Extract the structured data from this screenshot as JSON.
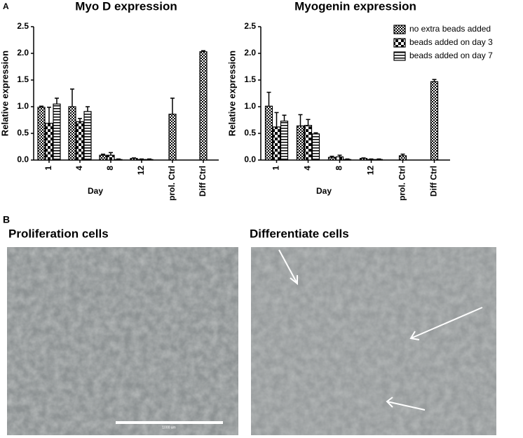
{
  "panel_labels": [
    "A",
    "B"
  ],
  "chart_data": [
    {
      "type": "bar",
      "title": "Myo D expression",
      "y_label": "Relative expression",
      "x_label": "Day",
      "categories": [
        "1",
        "4",
        "8",
        "12",
        "prol. Ctrl",
        "Diff Ctrl"
      ],
      "series": [
        {
          "name": "no extra beads added",
          "color": "#000000",
          "pattern": "checker",
          "values": [
            0.99,
            1.0,
            0.09,
            0.03,
            0.86,
            2.03
          ],
          "errors": [
            0.02,
            0.33,
            0.02,
            0.01,
            0.3,
            0.02
          ]
        },
        {
          "name": "beads added on day 3",
          "color": "#000000",
          "pattern": "dots",
          "values": [
            0.69,
            0.72,
            0.09,
            0.01,
            null,
            null
          ],
          "errors": [
            0.3,
            0.06,
            0.05,
            0.01,
            null,
            null
          ]
        },
        {
          "name": "beads added on day 7",
          "color": "#000000",
          "pattern": "stripes",
          "values": [
            1.05,
            0.91,
            0.01,
            0.01,
            null,
            null
          ],
          "errors": [
            0.11,
            0.09,
            0.01,
            0.01,
            null,
            null
          ]
        }
      ],
      "ylim": [
        0,
        2.5
      ],
      "yticks": [
        {
          "value": 0,
          "label": "0.0"
        },
        {
          "value": 0.5,
          "label": "0.5"
        },
        {
          "value": 1,
          "label": "1.0"
        },
        {
          "value": 1.5,
          "label": "1.5"
        },
        {
          "value": 2,
          "label": "2.0"
        },
        {
          "value": 2.5,
          "label": "2.5"
        }
      ],
      "legend": false
    },
    {
      "type": "bar",
      "title": "Myogenin expression",
      "y_label": "Relative expression",
      "x_label": "Day",
      "categories": [
        "1",
        "4",
        "8",
        "12",
        "prol. Ctrl",
        "Diff Ctrl"
      ],
      "series": [
        {
          "name": "no extra beads added",
          "color": "#000000",
          "pattern": "checker",
          "values": [
            1.01,
            0.64,
            0.05,
            0.03,
            0.08,
            1.47
          ],
          "errors": [
            0.26,
            0.21,
            0.02,
            0.01,
            0.03,
            0.04
          ]
        },
        {
          "name": "beads added on day 3",
          "color": "#000000",
          "pattern": "dots",
          "values": [
            0.62,
            0.65,
            0.06,
            0.01,
            null,
            null
          ],
          "errors": [
            0.27,
            0.11,
            0.03,
            0.01,
            null,
            null
          ]
        },
        {
          "name": "beads added on day 7",
          "color": "#000000",
          "pattern": "stripes",
          "values": [
            0.73,
            0.49,
            0.01,
            0.01,
            null,
            null
          ],
          "errors": [
            0.11,
            0.02,
            0.01,
            0.01,
            null,
            null
          ]
        }
      ],
      "ylim": [
        0,
        2.5
      ],
      "yticks": [
        {
          "value": 0,
          "label": "0.0"
        },
        {
          "value": 0.5,
          "label": "0.5"
        },
        {
          "value": 1,
          "label": "1.0"
        },
        {
          "value": 1.5,
          "label": "1.5"
        },
        {
          "value": 2,
          "label": "2.0"
        },
        {
          "value": 2.5,
          "label": "2.5"
        }
      ],
      "legend": "top-right"
    }
  ],
  "images": [
    {
      "title": "Proliferation cells",
      "scale_bar_label": "1000 um"
    },
    {
      "title": "Differentiate cells"
    }
  ]
}
